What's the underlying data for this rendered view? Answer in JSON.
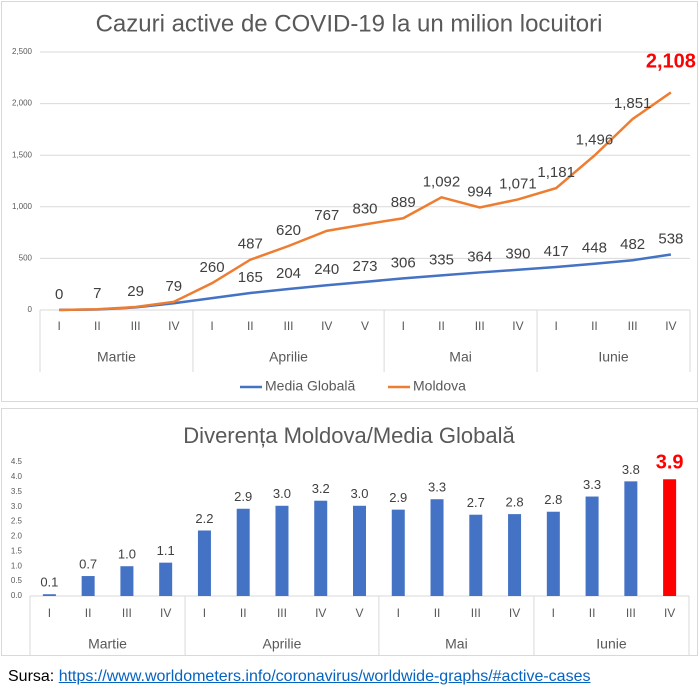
{
  "chart_data": [
    {
      "type": "line",
      "title": "Cazuri active de COVID-19 la un milion locuitori",
      "groups": [
        {
          "name": "Martie",
          "categories": [
            "I",
            "II",
            "III",
            "IV"
          ]
        },
        {
          "name": "Aprilie",
          "categories": [
            "I",
            "II",
            "III",
            "IV",
            "V"
          ]
        },
        {
          "name": "Mai",
          "categories": [
            "I",
            "II",
            "III",
            "IV"
          ]
        },
        {
          "name": "Iunie",
          "categories": [
            "I",
            "II",
            "III",
            "IV"
          ]
        }
      ],
      "series": [
        {
          "name": "Media Globală",
          "color": "#4472c4",
          "values": [
            1,
            5,
            25,
            65,
            115,
            165,
            204,
            240,
            273,
            306,
            335,
            364,
            390,
            417,
            448,
            482,
            538
          ],
          "value_labels": [
            null,
            null,
            null,
            null,
            null,
            "165",
            "204",
            "240",
            "273",
            "306",
            "335",
            "364",
            "390",
            "417",
            "448",
            "482",
            "538"
          ]
        },
        {
          "name": "Moldova",
          "color": "#ed7d31",
          "values": [
            0,
            7,
            29,
            79,
            260,
            487,
            620,
            767,
            830,
            889,
            1092,
            994,
            1071,
            1181,
            1496,
            1851,
            2108
          ],
          "value_labels": [
            "0",
            "7",
            "29",
            "79",
            "260",
            "487",
            "620",
            "767",
            "830",
            "889",
            "1,092",
            "994",
            "1,071",
            "1,181",
            "1,496",
            "1,851",
            "2,108"
          ]
        }
      ],
      "ylim": [
        0,
        2500
      ],
      "yticks": [
        0,
        500,
        {
          "value": 1000,
          "label": "1,000"
        },
        {
          "value": 1500,
          "label": "1,500"
        },
        {
          "value": 2000,
          "label": "2,000"
        },
        {
          "value": 2500,
          "label": "2,500"
        }
      ],
      "grid": true,
      "legend": "bottom",
      "highlight_last": true,
      "highlight_color": "#ff0000"
    },
    {
      "type": "bar",
      "title": "Diverența Moldova/Media Globală",
      "groups": [
        {
          "name": "Martie",
          "categories": [
            "I",
            "II",
            "III",
            "IV"
          ]
        },
        {
          "name": "Aprilie",
          "categories": [
            "I",
            "II",
            "III",
            "IV",
            "V"
          ]
        },
        {
          "name": "Mai",
          "categories": [
            "I",
            "II",
            "III",
            "IV"
          ]
        },
        {
          "name": "Iunie",
          "categories": [
            "I",
            "II",
            "III",
            "IV"
          ]
        }
      ],
      "color": "#4472c4",
      "values": [
        0.06,
        0.67,
        1.0,
        1.12,
        2.2,
        2.93,
        3.03,
        3.2,
        3.03,
        2.9,
        3.25,
        2.73,
        2.75,
        2.83,
        3.34,
        3.85,
        3.92
      ],
      "value_labels": [
        "0.1",
        "0.7",
        "1.0",
        "1.1",
        "2.2",
        "2.9",
        "3.0",
        "3.2",
        "3.0",
        "2.9",
        "3.3",
        "2.7",
        "2.8",
        "2.8",
        "3.3",
        "3.8",
        "3.9"
      ],
      "ylim": [
        0,
        4.5
      ],
      "yticks": [
        {
          "value": 0,
          "label": "0.0"
        },
        0.5,
        {
          "value": 1,
          "label": "1.0"
        },
        1.5,
        {
          "value": 2,
          "label": "2.0"
        },
        2.5,
        {
          "value": 3,
          "label": "3.0"
        },
        3.5,
        {
          "value": 4,
          "label": "4.0"
        },
        4.5
      ],
      "grid": false,
      "highlight_last": true,
      "highlight_color": "#ff0000"
    }
  ],
  "source": {
    "label": "Sursa:",
    "link": "https://www.worldometers.info/coronavirus/worldwide-graphs/#active-cases"
  }
}
